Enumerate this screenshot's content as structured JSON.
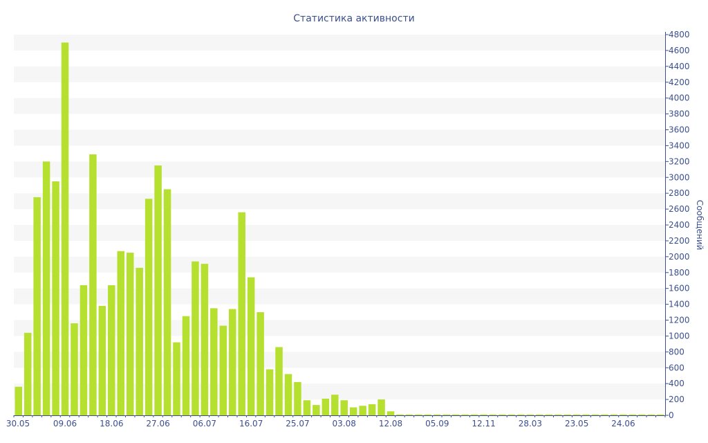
{
  "chart_data": {
    "type": "bar",
    "title": "Статистика активности",
    "xlabel": "",
    "ylabel": "Сообщений",
    "ylim": [
      0,
      4800
    ],
    "y_ticks": [
      0,
      200,
      400,
      600,
      800,
      1000,
      1200,
      1400,
      1600,
      1800,
      2000,
      2200,
      2400,
      2600,
      2800,
      3000,
      3200,
      3400,
      3600,
      3800,
      4000,
      4200,
      4400,
      4600,
      4800
    ],
    "y_axis_side": "right",
    "grid": "horizontal alternating bands",
    "x_tick_labels": [
      {
        "label": "30.05",
        "index": 0
      },
      {
        "label": "09.06",
        "index": 5
      },
      {
        "label": "18.06",
        "index": 10
      },
      {
        "label": "27.06",
        "index": 15
      },
      {
        "label": "06.07",
        "index": 20
      },
      {
        "label": "16.07",
        "index": 25
      },
      {
        "label": "25.07",
        "index": 30
      },
      {
        "label": "03.08",
        "index": 35
      },
      {
        "label": "12.08",
        "index": 40
      },
      {
        "label": "05.09",
        "index": 45
      },
      {
        "label": "12.11",
        "index": 50
      },
      {
        "label": "28.03",
        "index": 55
      },
      {
        "label": "23.05",
        "index": 60
      },
      {
        "label": "24.06",
        "index": 65
      }
    ],
    "bar_color": "#b5e02f",
    "values": [
      360,
      1040,
      2750,
      3200,
      2950,
      4700,
      1160,
      1640,
      3290,
      1380,
      1640,
      2070,
      2050,
      1860,
      2730,
      3150,
      2850,
      920,
      1250,
      1940,
      1910,
      1350,
      1130,
      1340,
      2560,
      1740,
      1300,
      580,
      860,
      520,
      420,
      190,
      130,
      210,
      260,
      190,
      100,
      120,
      140,
      200,
      50,
      10,
      10,
      10,
      10,
      10,
      10,
      10,
      10,
      10,
      10,
      10,
      10,
      10,
      10,
      10,
      10,
      10,
      10,
      10,
      10,
      10,
      10,
      10,
      10,
      10,
      10,
      10,
      10,
      10
    ]
  }
}
